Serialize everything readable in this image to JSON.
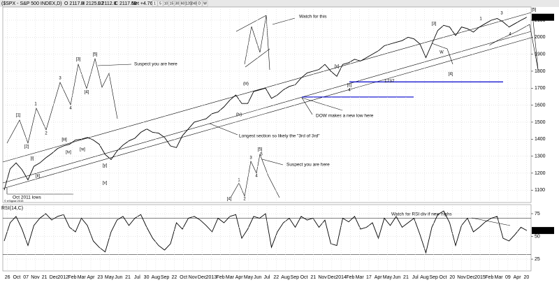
{
  "chart_data": [
    {
      "type": "line",
      "title": "($SPX - S&P 500 INDEX,D)",
      "quote": [
        "O 2117.8",
        "H 2125.92",
        "L 2112.8",
        "C 2117.69",
        "Net +4.76"
      ],
      "toolbar": [
        "1",
        "5",
        "10",
        "15",
        "30",
        "60",
        "120",
        "240",
        "D",
        "W"
      ],
      "series": [
        {
          "name": "$SPX",
          "color": "#000000",
          "values": [
            1100,
            1225,
            1260,
            1220,
            1160,
            1240,
            1260,
            1290,
            1315,
            1345,
            1360,
            1370,
            1395,
            1400,
            1410,
            1395,
            1370,
            1310,
            1280,
            1330,
            1365,
            1390,
            1405,
            1440,
            1460,
            1440,
            1435,
            1410,
            1360,
            1350,
            1420,
            1460,
            1500,
            1510,
            1520,
            1550,
            1560,
            1590,
            1630,
            1660,
            1610,
            1610,
            1680,
            1690,
            1700,
            1640,
            1660,
            1690,
            1710,
            1720,
            1760,
            1790,
            1800,
            1810,
            1840,
            1800,
            1770,
            1840,
            1850,
            1870,
            1860,
            1880,
            1900,
            1920,
            1950,
            1960,
            1970,
            1980,
            2000,
            1990,
            1960,
            1880,
            1960,
            2040,
            2070,
            2060,
            2010,
            2060,
            2050,
            2030,
            2060,
            2080,
            2100,
            2110,
            2090,
            2060,
            2080,
            2100,
            2117.69
          ]
        }
      ],
      "last_value": 2117.69,
      "ylim": [
        1027,
        2178
      ],
      "yticks": [
        1100,
        1200,
        1300,
        1400,
        1500,
        1600,
        1700,
        1800,
        1900,
        2000,
        2100
      ],
      "levels": [
        1737,
        1648
      ],
      "level_color": "#0000cc",
      "grid": true,
      "annotations": [
        "Watch for this",
        "Suspect you are here",
        "DOW makes a new low here",
        "Longest section so likely the \"3rd of 3rd\"",
        "Suspect you are here",
        "Oct 2011 lows",
        "© eSignal 2015"
      ],
      "wave_labels": [
        "[1]",
        "[2]",
        "1",
        "2",
        "3",
        "4",
        "[3]",
        "[4]",
        "[5]",
        "[4]",
        "1",
        "2",
        "3",
        "4",
        "[5]",
        "5",
        "1",
        "3",
        "4",
        "[5]",
        "W",
        "[4]",
        "[3]",
        "[i]",
        "[ii]",
        "[iii]",
        "[iv]",
        "[v]",
        "(iii)",
        "(iv)",
        "[c]",
        "4",
        "[v]",
        "[y]",
        "[w]"
      ]
    },
    {
      "type": "line",
      "title": "RSI(14,C)",
      "series": [
        {
          "name": "RSI",
          "color": "#000000",
          "values": [
            45,
            65,
            72,
            58,
            40,
            62,
            70,
            75,
            68,
            72,
            74,
            60,
            55,
            70,
            62,
            45,
            38,
            33,
            55,
            68,
            72,
            62,
            70,
            74,
            60,
            48,
            40,
            35,
            42,
            65,
            58,
            70,
            72,
            68,
            62,
            55,
            70,
            65,
            72,
            74,
            48,
            58,
            72,
            70,
            75,
            38,
            55,
            65,
            70,
            60,
            72,
            68,
            70,
            60,
            68,
            42,
            40,
            70,
            66,
            72,
            58,
            60,
            65,
            48,
            70,
            62,
            72,
            60,
            65,
            70,
            52,
            32,
            60,
            74,
            78,
            65,
            40,
            62,
            70,
            55,
            60,
            66,
            70,
            72,
            48,
            45,
            52,
            60,
            56.49
          ]
        }
      ],
      "last_value": 56.49,
      "ylim": [
        12,
        85
      ],
      "yticks": [
        25,
        50,
        75
      ],
      "levels": [
        70,
        30
      ],
      "annotations": [
        "Watch for RSI div if new highs"
      ],
      "x_labels": [
        "26",
        "Oct",
        "07",
        "Nov",
        "21",
        "Dec",
        "2012",
        "Feb",
        "Mar",
        "Apr",
        "23",
        "May",
        "Jun",
        "21",
        "Jul",
        "30",
        "Aug",
        "Sep",
        "22",
        "Oct",
        "Nov",
        "Dec",
        "2013",
        "Feb",
        "Mar",
        "Apr",
        "May",
        "Jun",
        "Jul",
        "22",
        "Aug",
        "Sep",
        "Oct",
        "21",
        "Nov",
        "Dec",
        "2014",
        "Feb",
        "Mar",
        "17",
        "Apr",
        "May",
        "Jun",
        "21",
        "Jul",
        "Aug",
        "Sep",
        "Oct",
        "20",
        "Nov",
        "Dec",
        "2015",
        "Feb",
        "Mar",
        "09",
        "Apr",
        "20"
      ]
    }
  ]
}
